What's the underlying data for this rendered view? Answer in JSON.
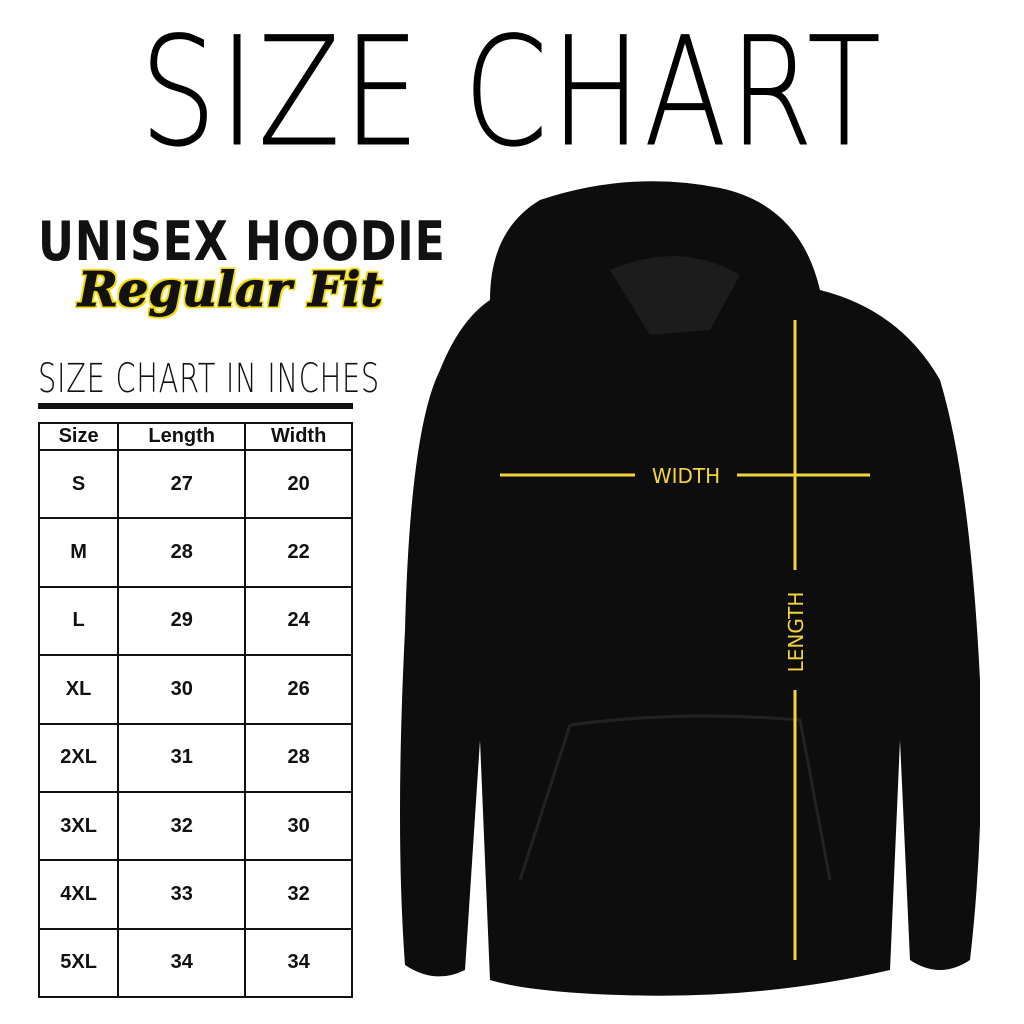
{
  "title": "SIZE CHART",
  "subtitle": "UNISEX HOODIE",
  "fit": "Regular Fit",
  "units_label": "SIZE CHART IN INCHES",
  "table": {
    "headers": [
      "Size",
      "Length",
      "Width"
    ],
    "rows": [
      [
        "S",
        "27",
        "20"
      ],
      [
        "M",
        "28",
        "22"
      ],
      [
        "L",
        "29",
        "24"
      ],
      [
        "XL",
        "30",
        "26"
      ],
      [
        "2XL",
        "31",
        "28"
      ],
      [
        "3XL",
        "32",
        "30"
      ],
      [
        "4XL",
        "33",
        "32"
      ],
      [
        "5XL",
        "34",
        "34"
      ]
    ]
  },
  "diagram": {
    "width_label": "WIDTH",
    "length_label": "LENGTH",
    "line_color": "#f2d53c",
    "garment_color": "#0d0d0d"
  }
}
